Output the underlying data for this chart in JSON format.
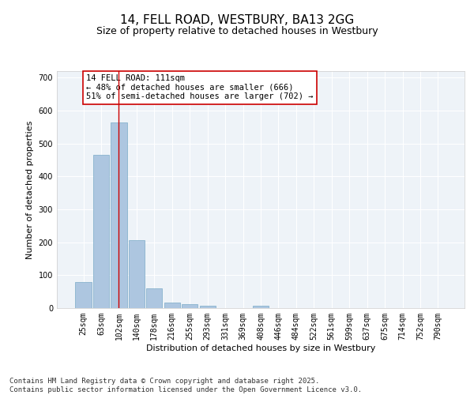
{
  "title": "14, FELL ROAD, WESTBURY, BA13 2GG",
  "subtitle": "Size of property relative to detached houses in Westbury",
  "xlabel": "Distribution of detached houses by size in Westbury",
  "ylabel": "Number of detached properties",
  "categories": [
    "25sqm",
    "63sqm",
    "102sqm",
    "140sqm",
    "178sqm",
    "216sqm",
    "255sqm",
    "293sqm",
    "331sqm",
    "369sqm",
    "408sqm",
    "446sqm",
    "484sqm",
    "522sqm",
    "561sqm",
    "599sqm",
    "637sqm",
    "675sqm",
    "714sqm",
    "752sqm",
    "790sqm"
  ],
  "values": [
    80,
    466,
    563,
    207,
    60,
    16,
    11,
    8,
    0,
    0,
    8,
    0,
    0,
    0,
    0,
    0,
    0,
    0,
    0,
    0,
    0
  ],
  "bar_color": "#adc6e0",
  "bar_edge_color": "#7aaac8",
  "bg_color": "#eef3f8",
  "grid_color": "#ffffff",
  "annotation_text": "14 FELL ROAD: 111sqm\n← 48% of detached houses are smaller (666)\n51% of semi-detached houses are larger (702) →",
  "annotation_box_color": "#ffffff",
  "annotation_box_edge_color": "#cc0000",
  "vline_x_index": 2,
  "vline_color": "#cc0000",
  "ylim": [
    0,
    720
  ],
  "yticks": [
    0,
    100,
    200,
    300,
    400,
    500,
    600,
    700
  ],
  "footnote": "Contains HM Land Registry data © Crown copyright and database right 2025.\nContains public sector information licensed under the Open Government Licence v3.0.",
  "title_fontsize": 11,
  "subtitle_fontsize": 9,
  "xlabel_fontsize": 8,
  "ylabel_fontsize": 8,
  "tick_fontsize": 7,
  "annotation_fontsize": 7.5,
  "footnote_fontsize": 6.5
}
